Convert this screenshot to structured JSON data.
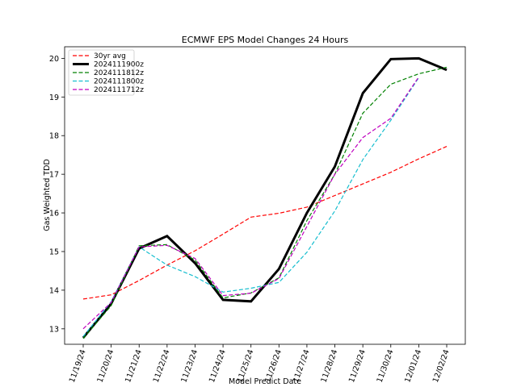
{
  "chart_data": {
    "type": "line",
    "title": "ECMWF EPS Model Changes 24 Hours",
    "xlabel": "Model Predict Date",
    "ylabel": "Gas Weighted TDD",
    "categories": [
      "11/19/24",
      "11/20/24",
      "11/21/24",
      "11/22/24",
      "11/23/24",
      "11/24/24",
      "11/25/24",
      "11/26/24",
      "11/27/24",
      "11/28/24",
      "11/29/24",
      "11/30/24",
      "12/01/24",
      "12/02/24"
    ],
    "yticks": [
      13,
      14,
      15,
      16,
      17,
      18,
      19,
      20
    ],
    "ylim": [
      12.6,
      20.3
    ],
    "grid": false,
    "legend_position": "top-left",
    "series": [
      {
        "name": "30yr avg",
        "color": "#ff0000",
        "style": "dashed",
        "width": 1.2,
        "values": [
          13.77,
          13.88,
          14.25,
          14.65,
          15.02,
          15.45,
          15.89,
          15.99,
          16.15,
          16.45,
          16.75,
          17.05,
          17.4,
          17.72
        ]
      },
      {
        "name": "2024111900z",
        "color": "#000000",
        "style": "solid",
        "width": 3,
        "values": [
          12.77,
          13.65,
          15.08,
          15.4,
          14.7,
          13.75,
          13.71,
          14.55,
          16.0,
          17.2,
          19.1,
          19.98,
          20.0,
          19.7
        ]
      },
      {
        "name": "2024111812z",
        "color": "#008000",
        "style": "dashed",
        "width": 1.2,
        "values": [
          12.75,
          13.6,
          15.15,
          15.18,
          14.78,
          13.8,
          13.93,
          14.32,
          15.8,
          17.0,
          18.58,
          19.33,
          19.6,
          19.77
        ]
      },
      {
        "name": "2024111800z",
        "color": "#17becf",
        "style": "dashed",
        "width": 1.2,
        "values": [
          12.8,
          13.7,
          15.12,
          14.65,
          14.35,
          13.95,
          14.05,
          14.2,
          14.98,
          16.05,
          17.38,
          18.4,
          19.5,
          null
        ]
      },
      {
        "name": "2024111712z",
        "color": "#bf00bf",
        "style": "dashed",
        "width": 1.2,
        "values": [
          13.0,
          13.68,
          15.12,
          15.16,
          14.82,
          13.86,
          13.92,
          14.3,
          15.65,
          17.0,
          17.95,
          18.45,
          19.52,
          null
        ]
      }
    ]
  }
}
